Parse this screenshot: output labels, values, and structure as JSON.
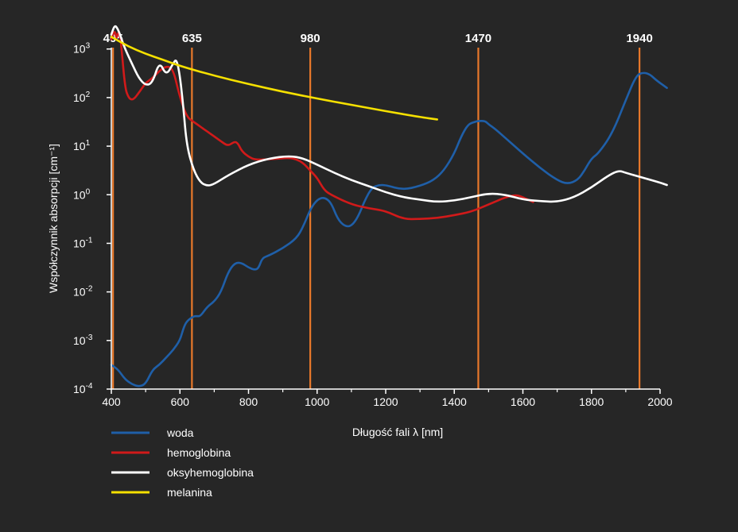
{
  "chart_data": {
    "type": "line",
    "title": "",
    "xlabel": "Długość fali λ [nm]",
    "ylabel": "Współczynnik absorpcji [cm⁻¹]",
    "xlim": [
      400,
      2000
    ],
    "ylim_log10": [
      -4,
      3.6
    ],
    "y_scale": "log",
    "grid": false,
    "legend_position": "bottom-left",
    "x_ticks": [
      {
        "value": 400,
        "label": "400"
      },
      {
        "value": 600,
        "label": "600"
      },
      {
        "value": 800,
        "label": "800"
      },
      {
        "value": 1000,
        "label": "1000"
      },
      {
        "value": 1200,
        "label": "1200"
      },
      {
        "value": 1400,
        "label": "1400"
      },
      {
        "value": 1600,
        "label": "1600"
      },
      {
        "value": 1800,
        "label": "1800"
      },
      {
        "value": 2000,
        "label": "2000"
      }
    ],
    "y_ticks": [
      {
        "value": 3,
        "base": "10",
        "exp": "3"
      },
      {
        "value": 2,
        "base": "10",
        "exp": "2"
      },
      {
        "value": 1,
        "base": "10",
        "exp": "1"
      },
      {
        "value": 0,
        "base": "10",
        "exp": "0"
      },
      {
        "value": -1,
        "base": "10",
        "exp": "-1"
      },
      {
        "value": -2,
        "base": "10",
        "exp": "-2"
      },
      {
        "value": -3,
        "base": "10",
        "exp": "-3"
      },
      {
        "value": -4,
        "base": "10",
        "exp": "-4"
      }
    ],
    "markers": [
      {
        "x": 405,
        "label": "405",
        "color": "#e8782a"
      },
      {
        "x": 635,
        "label": "635",
        "color": "#e8782a"
      },
      {
        "x": 980,
        "label": "980",
        "color": "#e8782a"
      },
      {
        "x": 1470,
        "label": "1470",
        "color": "#e8782a"
      },
      {
        "x": 1940,
        "label": "1940",
        "color": "#e8782a"
      }
    ],
    "series": [
      {
        "name": "woda",
        "color": "#1f5fa8",
        "x": [
          400,
          420,
          440,
          460,
          480,
          500,
          520,
          540,
          560,
          580,
          600,
          610,
          620,
          640,
          650,
          660,
          680,
          700,
          720,
          740,
          760,
          780,
          800,
          820,
          830,
          840,
          860,
          900,
          940,
          960,
          980,
          1000,
          1020,
          1040,
          1060,
          1080,
          1100,
          1120,
          1140,
          1160,
          1180,
          1200,
          1250,
          1300,
          1340,
          1370,
          1400,
          1420,
          1440,
          1460,
          1470,
          1490,
          1500,
          1520,
          1560,
          1600,
          1650,
          1700,
          1730,
          1760,
          1780,
          1800,
          1820,
          1860,
          1900,
          1930,
          1950,
          1970,
          1990,
          2020
        ],
        "y": [
          -3.5,
          -3.6,
          -3.8,
          -3.9,
          -3.95,
          -3.9,
          -3.6,
          -3.5,
          -3.35,
          -3.2,
          -3.0,
          -2.75,
          -2.6,
          -2.5,
          -2.5,
          -2.5,
          -2.3,
          -2.2,
          -2.0,
          -1.6,
          -1.4,
          -1.4,
          -1.5,
          -1.55,
          -1.5,
          -1.3,
          -1.25,
          -1.1,
          -0.9,
          -0.65,
          -0.3,
          -0.1,
          -0.05,
          -0.15,
          -0.5,
          -0.65,
          -0.65,
          -0.45,
          -0.1,
          0.15,
          0.2,
          0.2,
          0.1,
          0.18,
          0.3,
          0.5,
          0.85,
          1.2,
          1.45,
          1.5,
          1.52,
          1.52,
          1.45,
          1.35,
          1.1,
          0.85,
          0.55,
          0.3,
          0.22,
          0.3,
          0.5,
          0.75,
          0.85,
          1.25,
          1.95,
          2.45,
          2.52,
          2.48,
          2.35,
          2.2
        ]
      },
      {
        "name": "hemoglobina",
        "color": "#d11a1a",
        "x": [
          400,
          410,
          415,
          420,
          425,
          430,
          440,
          450,
          460,
          470,
          480,
          490,
          500,
          520,
          540,
          560,
          580,
          600,
          620,
          640,
          660,
          680,
          700,
          720,
          740,
          760,
          770,
          780,
          800,
          820,
          860,
          900,
          920,
          940,
          960,
          980,
          1000,
          1020,
          1040,
          1100,
          1150,
          1200,
          1250,
          1300,
          1350,
          1400,
          1450,
          1500,
          1550,
          1580,
          1600,
          1630
        ],
        "y": [
          3.2,
          3.4,
          3.2,
          3.35,
          3.3,
          3.0,
          2.2,
          2.0,
          1.95,
          2.0,
          2.1,
          2.2,
          2.3,
          2.4,
          2.55,
          2.65,
          2.6,
          2.0,
          1.6,
          1.5,
          1.4,
          1.3,
          1.2,
          1.1,
          1.0,
          1.1,
          1.05,
          0.9,
          0.78,
          0.72,
          0.73,
          0.75,
          0.76,
          0.73,
          0.65,
          0.5,
          0.35,
          0.1,
          0.0,
          -0.2,
          -0.28,
          -0.33,
          -0.5,
          -0.5,
          -0.48,
          -0.42,
          -0.35,
          -0.2,
          -0.05,
          0.0,
          -0.05,
          -0.15
        ]
      },
      {
        "name": "oksyhemoglobina",
        "color": "#ffffff",
        "x": [
          400,
          410,
          420,
          430,
          440,
          460,
          480,
          500,
          520,
          540,
          560,
          580,
          590,
          600,
          610,
          620,
          640,
          660,
          680,
          700,
          740,
          800,
          860,
          920,
          960,
          1000,
          1050,
          1100,
          1150,
          1200,
          1250,
          1300,
          1350,
          1400,
          1450,
          1500,
          1550,
          1600,
          1650,
          1700,
          1750,
          1800,
          1850,
          1880,
          1900,
          1950,
          2000,
          2020
        ],
        "y": [
          3.3,
          3.5,
          3.4,
          3.2,
          3.0,
          2.7,
          2.4,
          2.25,
          2.3,
          2.75,
          2.45,
          2.7,
          2.8,
          2.45,
          1.8,
          1.0,
          0.5,
          0.25,
          0.18,
          0.22,
          0.4,
          0.62,
          0.75,
          0.8,
          0.75,
          0.62,
          0.45,
          0.3,
          0.18,
          0.05,
          -0.05,
          -0.1,
          -0.15,
          -0.12,
          -0.05,
          0.03,
          0.0,
          -0.1,
          -0.13,
          -0.15,
          -0.05,
          0.15,
          0.4,
          0.5,
          0.45,
          0.35,
          0.25,
          0.2
        ]
      },
      {
        "name": "melanina",
        "color": "#f5e000",
        "x": [
          400,
          450,
          500,
          550,
          600,
          700,
          800,
          900,
          1000,
          1100,
          1200,
          1300,
          1350
        ],
        "y": [
          3.25,
          3.05,
          2.9,
          2.78,
          2.65,
          2.45,
          2.28,
          2.12,
          1.98,
          1.85,
          1.72,
          1.6,
          1.55
        ]
      }
    ]
  }
}
